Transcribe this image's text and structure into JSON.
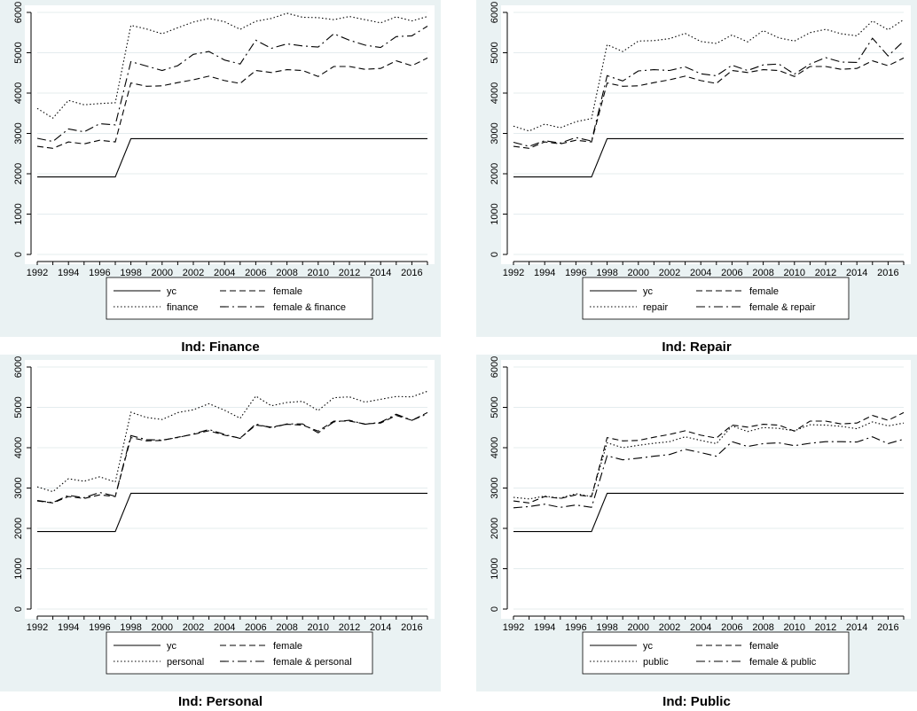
{
  "chart_data": [
    {
      "type": "line",
      "title": "Ind: Finance",
      "xlim": [
        1992,
        2017
      ],
      "ylim": [
        0,
        6000
      ],
      "xticks": [
        1992,
        1994,
        1996,
        1998,
        2000,
        2002,
        2004,
        2006,
        2008,
        2010,
        2012,
        2014,
        2016
      ],
      "yticks": [
        0,
        1000,
        2000,
        3000,
        4000,
        5000,
        6000
      ],
      "grid": "horizontal",
      "legend_position": "bottom",
      "x": [
        1992,
        1993,
        1994,
        1995,
        1996,
        1997,
        1998,
        1999,
        2000,
        2001,
        2002,
        2003,
        2004,
        2005,
        2006,
        2007,
        2008,
        2009,
        2010,
        2011,
        2012,
        2013,
        2014,
        2015,
        2016,
        2017
      ],
      "series": [
        {
          "name": "yc",
          "style": "solid",
          "values": [
            1920,
            1920,
            1920,
            1920,
            1920,
            1920,
            2870,
            2870,
            2870,
            2870,
            2870,
            2870,
            2870,
            2870,
            2870,
            2870,
            2870,
            2870,
            2870,
            2870,
            2870,
            2870,
            2870,
            2870,
            2870,
            2870
          ]
        },
        {
          "name": "female",
          "style": "dashed",
          "values": [
            2680,
            2630,
            2790,
            2740,
            2830,
            2790,
            4250,
            4170,
            4180,
            4260,
            4330,
            4420,
            4310,
            4240,
            4560,
            4510,
            4580,
            4560,
            4410,
            4660,
            4660,
            4590,
            4610,
            4800,
            4680,
            4870
          ]
        },
        {
          "name": "finance",
          "style": "dotted",
          "values": [
            3620,
            3380,
            3820,
            3710,
            3740,
            3760,
            5680,
            5590,
            5470,
            5620,
            5760,
            5850,
            5770,
            5580,
            5780,
            5850,
            5980,
            5880,
            5870,
            5820,
            5900,
            5820,
            5740,
            5890,
            5790,
            5900
          ]
        },
        {
          "name": "female & finance",
          "style": "dashdot",
          "values": [
            2880,
            2800,
            3110,
            3040,
            3240,
            3210,
            4780,
            4670,
            4560,
            4680,
            4960,
            5030,
            4820,
            4720,
            5310,
            5110,
            5220,
            5170,
            5140,
            5470,
            5310,
            5190,
            5130,
            5400,
            5420,
            5660
          ]
        }
      ]
    },
    {
      "type": "line",
      "title": "Ind: Repair",
      "xlim": [
        1992,
        2017
      ],
      "ylim": [
        0,
        6000
      ],
      "xticks": [
        1992,
        1994,
        1996,
        1998,
        2000,
        2002,
        2004,
        2006,
        2008,
        2010,
        2012,
        2014,
        2016
      ],
      "yticks": [
        0,
        1000,
        2000,
        3000,
        4000,
        5000,
        6000
      ],
      "grid": "horizontal",
      "legend_position": "bottom",
      "x": [
        1992,
        1993,
        1994,
        1995,
        1996,
        1997,
        1998,
        1999,
        2000,
        2001,
        2002,
        2003,
        2004,
        2005,
        2006,
        2007,
        2008,
        2009,
        2010,
        2011,
        2012,
        2013,
        2014,
        2015,
        2016,
        2017
      ],
      "series": [
        {
          "name": "yc",
          "style": "solid",
          "values": [
            1920,
            1920,
            1920,
            1920,
            1920,
            1920,
            2870,
            2870,
            2870,
            2870,
            2870,
            2870,
            2870,
            2870,
            2870,
            2870,
            2870,
            2870,
            2870,
            2870,
            2870,
            2870,
            2870,
            2870,
            2870,
            2870
          ]
        },
        {
          "name": "female",
          "style": "dashed",
          "values": [
            2680,
            2630,
            2790,
            2740,
            2830,
            2790,
            4250,
            4170,
            4180,
            4260,
            4330,
            4420,
            4310,
            4240,
            4560,
            4510,
            4580,
            4560,
            4410,
            4660,
            4660,
            4590,
            4610,
            4800,
            4680,
            4870
          ]
        },
        {
          "name": "repair",
          "style": "dotted",
          "values": [
            3180,
            3060,
            3230,
            3140,
            3290,
            3370,
            5200,
            5030,
            5290,
            5300,
            5350,
            5480,
            5280,
            5230,
            5440,
            5270,
            5550,
            5370,
            5290,
            5500,
            5580,
            5470,
            5420,
            5790,
            5570,
            5820
          ]
        },
        {
          "name": "female & repair",
          "style": "dashdot",
          "values": [
            2780,
            2680,
            2820,
            2760,
            2900,
            2810,
            4430,
            4300,
            4550,
            4580,
            4560,
            4650,
            4480,
            4430,
            4690,
            4560,
            4700,
            4720,
            4470,
            4720,
            4880,
            4770,
            4760,
            5360,
            4920,
            5290
          ]
        }
      ]
    },
    {
      "type": "line",
      "title": "Ind: Personal",
      "xlim": [
        1992,
        2017
      ],
      "ylim": [
        0,
        6000
      ],
      "xticks": [
        1992,
        1994,
        1996,
        1998,
        2000,
        2002,
        2004,
        2006,
        2008,
        2010,
        2012,
        2014,
        2016
      ],
      "yticks": [
        0,
        1000,
        2000,
        3000,
        4000,
        5000,
        6000
      ],
      "grid": "horizontal",
      "legend_position": "bottom",
      "x": [
        1992,
        1993,
        1994,
        1995,
        1996,
        1997,
        1998,
        1999,
        2000,
        2001,
        2002,
        2003,
        2004,
        2005,
        2006,
        2007,
        2008,
        2009,
        2010,
        2011,
        2012,
        2013,
        2014,
        2015,
        2016,
        2017
      ],
      "series": [
        {
          "name": "yc",
          "style": "solid",
          "values": [
            1920,
            1920,
            1920,
            1920,
            1920,
            1920,
            2870,
            2870,
            2870,
            2870,
            2870,
            2870,
            2870,
            2870,
            2870,
            2870,
            2870,
            2870,
            2870,
            2870,
            2870,
            2870,
            2870,
            2870,
            2870,
            2870
          ]
        },
        {
          "name": "female",
          "style": "dashed",
          "values": [
            2680,
            2630,
            2790,
            2740,
            2830,
            2790,
            4250,
            4170,
            4180,
            4260,
            4330,
            4420,
            4310,
            4240,
            4560,
            4510,
            4580,
            4560,
            4410,
            4660,
            4660,
            4590,
            4610,
            4800,
            4680,
            4870
          ]
        },
        {
          "name": "personal",
          "style": "dotted",
          "values": [
            3030,
            2910,
            3230,
            3170,
            3280,
            3150,
            4880,
            4750,
            4700,
            4870,
            4940,
            5090,
            4930,
            4730,
            5280,
            5040,
            5120,
            5150,
            4920,
            5240,
            5260,
            5130,
            5200,
            5270,
            5260,
            5400
          ]
        },
        {
          "name": "female & personal",
          "style": "dashdot",
          "values": [
            2690,
            2640,
            2820,
            2760,
            2890,
            2800,
            4300,
            4200,
            4190,
            4250,
            4340,
            4450,
            4330,
            4230,
            4590,
            4490,
            4590,
            4590,
            4370,
            4640,
            4680,
            4580,
            4630,
            4830,
            4680,
            4840
          ]
        }
      ]
    },
    {
      "type": "line",
      "title": "Ind: Public",
      "xlim": [
        1992,
        2017
      ],
      "ylim": [
        0,
        6000
      ],
      "xticks": [
        1992,
        1994,
        1996,
        1998,
        2000,
        2002,
        2004,
        2006,
        2008,
        2010,
        2012,
        2014,
        2016
      ],
      "yticks": [
        0,
        1000,
        2000,
        3000,
        4000,
        5000,
        6000
      ],
      "grid": "horizontal",
      "legend_position": "bottom",
      "x": [
        1992,
        1993,
        1994,
        1995,
        1996,
        1997,
        1998,
        1999,
        2000,
        2001,
        2002,
        2003,
        2004,
        2005,
        2006,
        2007,
        2008,
        2009,
        2010,
        2011,
        2012,
        2013,
        2014,
        2015,
        2016,
        2017
      ],
      "series": [
        {
          "name": "yc",
          "style": "solid",
          "values": [
            1920,
            1920,
            1920,
            1920,
            1920,
            1920,
            2870,
            2870,
            2870,
            2870,
            2870,
            2870,
            2870,
            2870,
            2870,
            2870,
            2870,
            2870,
            2870,
            2870,
            2870,
            2870,
            2870,
            2870,
            2870,
            2870
          ]
        },
        {
          "name": "female",
          "style": "dashed",
          "values": [
            2680,
            2630,
            2790,
            2740,
            2830,
            2790,
            4250,
            4170,
            4180,
            4260,
            4330,
            4420,
            4310,
            4240,
            4560,
            4510,
            4580,
            4560,
            4410,
            4660,
            4660,
            4590,
            4610,
            4800,
            4680,
            4870
          ]
        },
        {
          "name": "public",
          "style": "dotted",
          "values": [
            2770,
            2730,
            2800,
            2750,
            2860,
            2790,
            4120,
            4000,
            4060,
            4110,
            4150,
            4270,
            4180,
            4100,
            4540,
            4400,
            4500,
            4480,
            4420,
            4570,
            4560,
            4530,
            4470,
            4640,
            4540,
            4610
          ]
        },
        {
          "name": "female & public",
          "style": "dashdot",
          "values": [
            2510,
            2540,
            2600,
            2520,
            2580,
            2520,
            3800,
            3700,
            3740,
            3790,
            3830,
            3960,
            3880,
            3790,
            4150,
            4030,
            4100,
            4120,
            4050,
            4110,
            4150,
            4150,
            4140,
            4270,
            4100,
            4210
          ]
        }
      ]
    }
  ]
}
